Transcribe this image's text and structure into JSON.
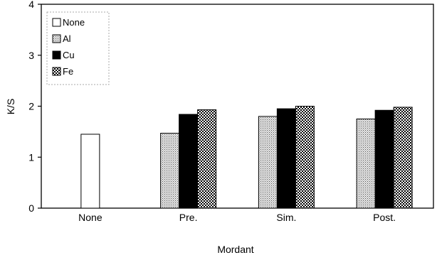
{
  "chart_data": {
    "type": "bar",
    "categories": [
      "None",
      "Pre.",
      "Sim.",
      "Post."
    ],
    "series": [
      {
        "name": "None",
        "values": [
          1.45,
          null,
          null,
          null
        ],
        "fill": "#ffffff",
        "pattern": "none"
      },
      {
        "name": "Al",
        "values": [
          null,
          1.47,
          1.8,
          1.75
        ],
        "fill": "#d4d4d4",
        "pattern": "dotted"
      },
      {
        "name": "Cu",
        "values": [
          null,
          1.84,
          1.95,
          1.92
        ],
        "fill": "#000000",
        "pattern": "none"
      },
      {
        "name": "Fe",
        "values": [
          null,
          1.93,
          2.0,
          1.98
        ],
        "fill": "#8a8a8a",
        "pattern": "checker"
      }
    ],
    "xlabel": "Mordant",
    "ylabel": "K/S",
    "ylim": [
      0,
      4
    ],
    "yticks": [
      "0",
      "1",
      "2",
      "3",
      "4"
    ],
    "legend_position": "top-left",
    "grid": false
  }
}
